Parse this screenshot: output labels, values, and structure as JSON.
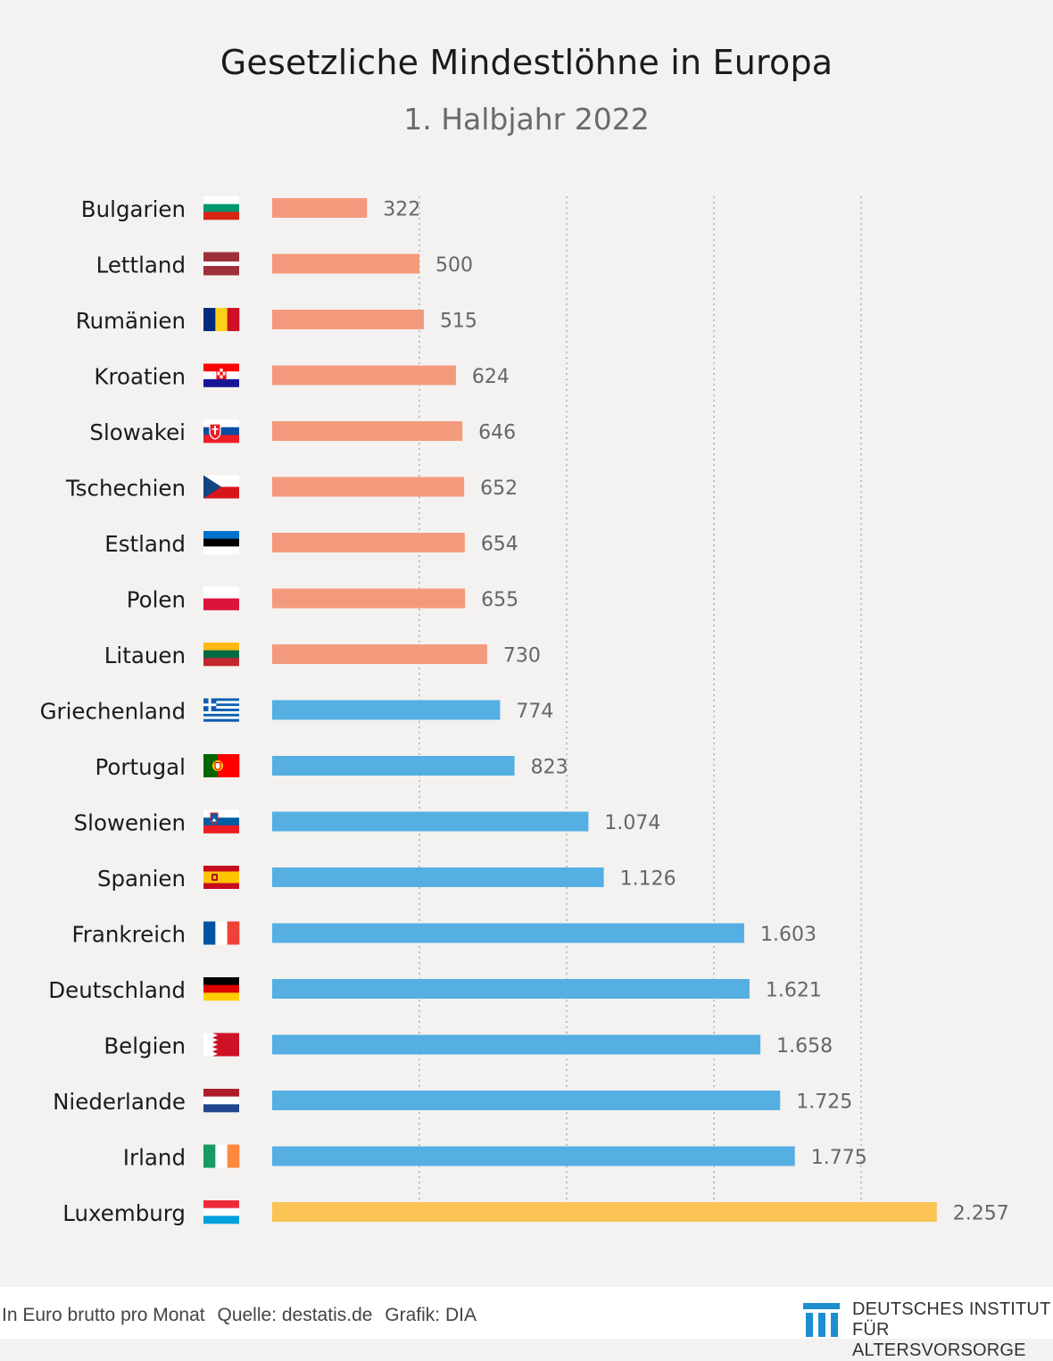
{
  "colors": {
    "background": "#f3f2f0",
    "salmon": "#f49a7c",
    "blue": "#55afe3",
    "gold": "#fcc455",
    "grid": "#a6a6a6",
    "label": "#1b1b1b",
    "value": "#666666",
    "logo": "#1d8fd0"
  },
  "chart_data": {
    "type": "bar",
    "orientation": "horizontal",
    "title": "Gesetzliche Mindestlöhne in Europa",
    "subtitle": "1. Halbjahr 2022",
    "unit": "In Euro brutto pro Monat",
    "xlim": [
      0,
      2500
    ],
    "gridlines": [
      500,
      1000,
      1500,
      2000
    ],
    "grid": true,
    "categories": [
      "Bulgarien",
      "Lettland",
      "Rumänien",
      "Kroatien",
      "Slowakei",
      "Tschechien",
      "Estland",
      "Polen",
      "Litauen",
      "Griechenland",
      "Portugal",
      "Slowenien",
      "Spanien",
      "Frankreich",
      "Deutschland",
      "Belgien",
      "Niederlande",
      "Irland",
      "Luxemburg"
    ],
    "values": [
      322,
      500,
      515,
      624,
      646,
      652,
      654,
      655,
      730,
      774,
      823,
      1074,
      1126,
      1603,
      1621,
      1658,
      1725,
      1775,
      2257
    ],
    "value_labels": [
      "322",
      "500",
      "515",
      "624",
      "646",
      "652",
      "654",
      "655",
      "730",
      "774",
      "823",
      "1.074",
      "1.126",
      "1.603",
      "1.621",
      "1.658",
      "1.725",
      "1.775",
      "2.257"
    ],
    "groups": [
      "low",
      "low",
      "low",
      "low",
      "low",
      "low",
      "low",
      "low",
      "low",
      "mid",
      "mid",
      "mid",
      "mid",
      "mid",
      "mid",
      "mid",
      "mid",
      "mid",
      "high"
    ],
    "group_colors": {
      "low": "#f49a7c",
      "mid": "#55afe3",
      "high": "#fcc455"
    },
    "flags": [
      "bulgaria-flag-icon",
      "latvia-flag-icon",
      "romania-flag-icon",
      "croatia-flag-icon",
      "slovakia-flag-icon",
      "czechia-flag-icon",
      "estonia-flag-icon",
      "poland-flag-icon",
      "lithuania-flag-icon",
      "greece-flag-icon",
      "portugal-flag-icon",
      "slovenia-flag-icon",
      "spain-flag-icon",
      "france-flag-icon",
      "germany-flag-icon",
      "belgium-flag-icon",
      "netherlands-flag-icon",
      "ireland-flag-icon",
      "luxembourg-flag-icon"
    ]
  },
  "footer": {
    "unit": "In Euro brutto pro Monat",
    "source": "Quelle: destatis.de",
    "credit": "Grafik: DIA",
    "logo_icon": "dia-columns-logo-icon",
    "logo_line1": "DEUTSCHES INSTITUT",
    "logo_line2": "FÜR ALTERSVORSORGE"
  }
}
